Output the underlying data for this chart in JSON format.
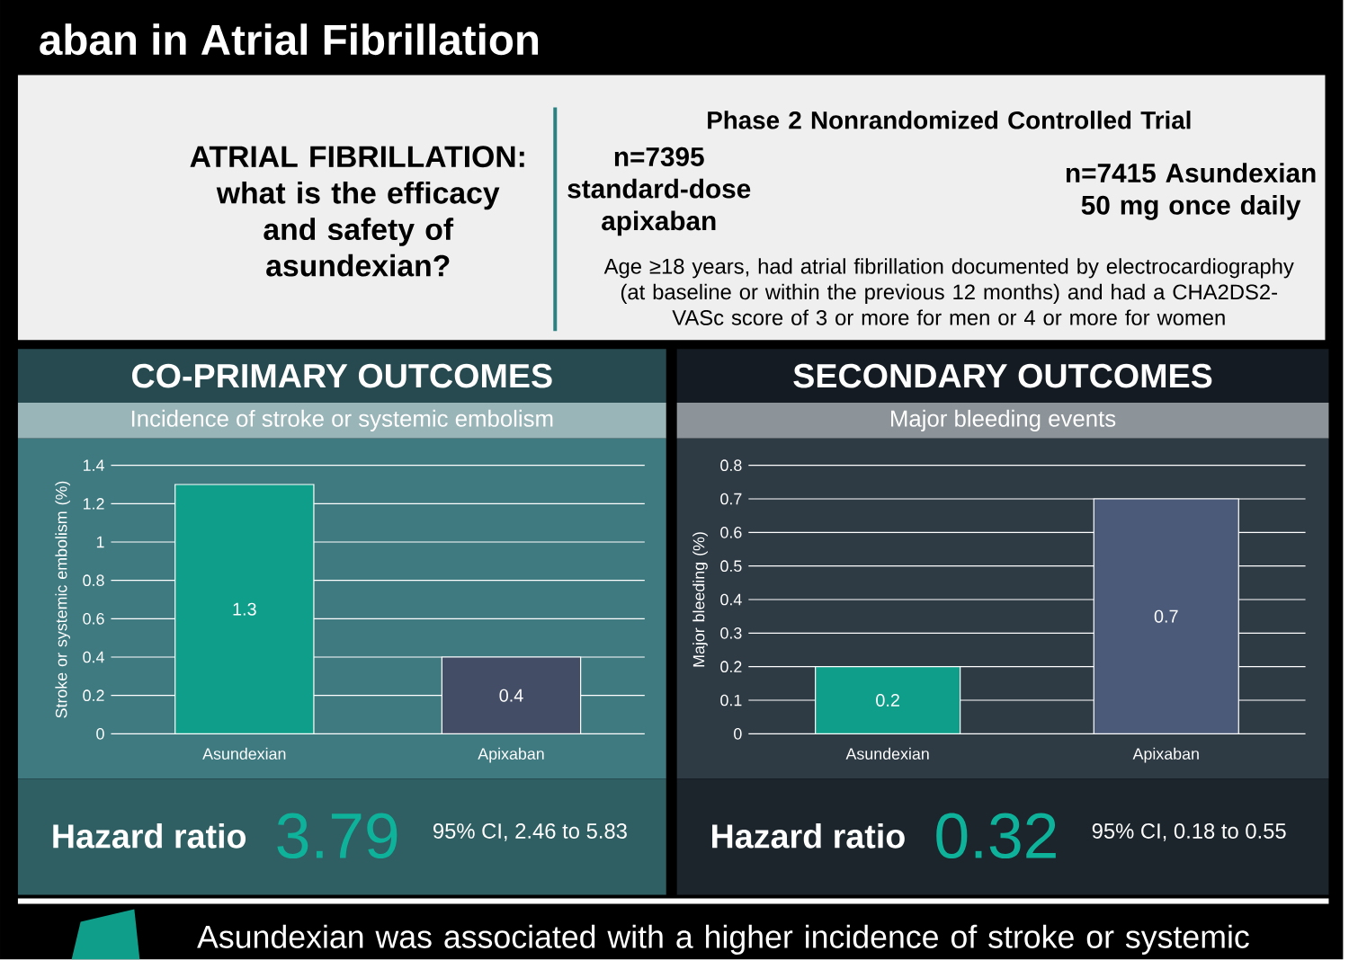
{
  "chart_data": [
    {
      "type": "other",
      "title": "aban in Atrial Fibrillation",
      "annotations": [
        "ATRIAL FIBRILLATION: what is the efficacy and safety of asundexian?",
        "Phase 2 Nonrandomized Controlled Trial",
        "n=7395 standard-dose apixaban",
        "n=7415 Asundexian 50 mg once daily",
        "Age ≥18 years, had atrial fibrillation documented by electrocardiography (at baseline or within the previous 12 months) and had a CHA2DS2-VASc score of 3 or more for men or 4 or more for women",
        "Asundexian was associated with a higher incidence of stroke or systemic"
      ]
    },
    {
      "type": "bar",
      "title": "CO-PRIMARY OUTCOMES",
      "subtitle": "Incidence of stroke or systemic embolism",
      "ylabel": "Stroke or systemic embolism (%)",
      "categories": [
        "Asundexian",
        "Apixaban"
      ],
      "values": [
        1.3,
        0.4
      ],
      "colors": [
        "#0e9e8a",
        "#434e66"
      ],
      "ylim": [
        0,
        1.4
      ],
      "yticks": [
        0,
        0.2,
        0.4,
        0.6,
        0.8,
        1,
        1.2,
        1.4
      ],
      "grid": "y",
      "data_labels": true,
      "annotations": [
        "Hazard ratio",
        "3.79",
        "95% CI, 2.46 to 5.83"
      ]
    },
    {
      "type": "bar",
      "title": "SECONDARY OUTCOMES",
      "subtitle": "Major bleeding events",
      "ylabel": "Major bleeding (%)",
      "categories": [
        "Asundexian",
        "Apixaban"
      ],
      "values": [
        0.2,
        0.7
      ],
      "colors": [
        "#0e9e8a",
        "#4a5a78"
      ],
      "ylim": [
        0,
        0.8
      ],
      "yticks": [
        0,
        0.1,
        0.2,
        0.3,
        0.4,
        0.5,
        0.6,
        0.7,
        0.8
      ],
      "grid": "y",
      "data_labels": true,
      "annotations": [
        "Hazard ratio",
        "0.32",
        "95% CI, 0.18 to 0.55"
      ]
    }
  ]
}
